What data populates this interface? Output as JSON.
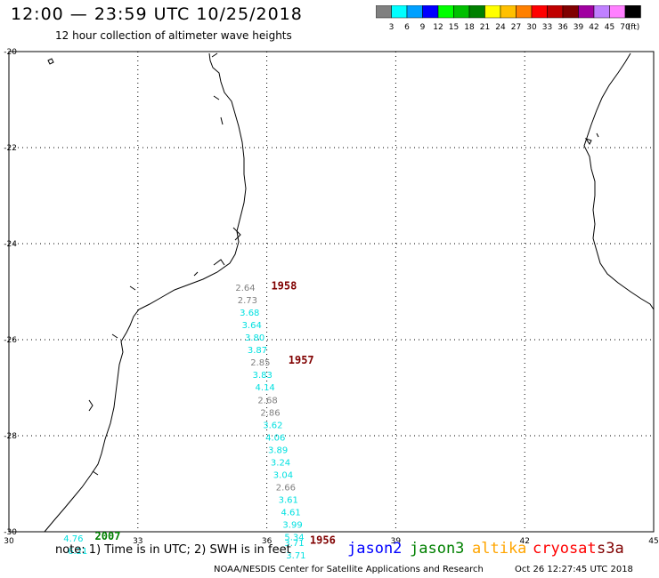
{
  "header": {
    "title": "12:00 — 23:59 UTC 10/25/2018",
    "subtitle": "12 hour collection of altimeter wave heights"
  },
  "colorbar": {
    "unit": "(ft)",
    "colors": [
      "#808080",
      "#00ffff",
      "#00a0ff",
      "#0000ff",
      "#00ff00",
      "#00c000",
      "#008000",
      "#ffff00",
      "#ffc000",
      "#ff8000",
      "#ff0000",
      "#c00000",
      "#800000",
      "#a000a0",
      "#c080ff",
      "#ff80ff",
      "#000000"
    ],
    "labels": [
      "3",
      "6",
      "9",
      "12",
      "15",
      "18",
      "21",
      "24",
      "27",
      "30",
      "33",
      "36",
      "39",
      "42",
      "45",
      "70"
    ]
  },
  "notes": "note: 1) Time is in UTC; 2) SWH is in feet",
  "legend": [
    {
      "name": "jason2",
      "color": "#0000ff"
    },
    {
      "name": "jason3",
      "color": "#008000"
    },
    {
      "name": "altika",
      "color": "#ffa500"
    },
    {
      "name": "cryosat",
      "color": "#ff0000"
    },
    {
      "name": "s3a",
      "color": "#800000"
    }
  ],
  "footer": {
    "agency": "NOAA/NESDIS Center for Satellite Applications and Research",
    "timestamp": "Oct 26 12:27:45 UTC 2018"
  },
  "chart_data": {
    "type": "scatter",
    "title": "12:00 — 23:59 UTC 10/25/2018",
    "subtitle": "12 hour collection of altimeter wave heights",
    "xlim": [
      30,
      45
    ],
    "ylim": [
      -30,
      -20
    ],
    "xticks": [
      30,
      33,
      36,
      39,
      42,
      45
    ],
    "xtick_labels": [
      "30",
      "33",
      "36",
      "39",
      "42",
      "45"
    ],
    "yticks": [
      -20,
      -22,
      -24,
      -26,
      -28,
      -30
    ],
    "ytick_labels": [
      "-20",
      "-22",
      "-24",
      "-26",
      "-28",
      "-30"
    ],
    "grid": true,
    "series": [
      {
        "name": "s3a",
        "color_code": "cyan/gray by SWH",
        "points": [
          {
            "lon": 35.5,
            "lat": -24.98,
            "swh": "2.64",
            "color": "#808080"
          },
          {
            "lon": 35.55,
            "lat": -25.24,
            "swh": "2.73",
            "color": "#808080"
          },
          {
            "lon": 35.6,
            "lat": -25.5,
            "swh": "3.68",
            "color": "#00e0e0"
          },
          {
            "lon": 35.65,
            "lat": -25.76,
            "swh": "3.64",
            "color": "#00e0e0"
          },
          {
            "lon": 35.72,
            "lat": -26.02,
            "swh": "3.80",
            "color": "#00e0e0"
          },
          {
            "lon": 35.78,
            "lat": -26.28,
            "swh": "3.87",
            "color": "#00e0e0"
          },
          {
            "lon": 35.85,
            "lat": -26.54,
            "swh": "2.85",
            "color": "#808080"
          },
          {
            "lon": 35.9,
            "lat": -26.8,
            "swh": "3.83",
            "color": "#00e0e0"
          },
          {
            "lon": 35.96,
            "lat": -27.06,
            "swh": "4.14",
            "color": "#00e0e0"
          },
          {
            "lon": 36.02,
            "lat": -27.32,
            "swh": "2.68",
            "color": "#808080"
          },
          {
            "lon": 36.08,
            "lat": -27.58,
            "swh": "2.86",
            "color": "#808080"
          },
          {
            "lon": 36.14,
            "lat": -27.84,
            "swh": "3.62",
            "color": "#00e0e0"
          },
          {
            "lon": 36.2,
            "lat": -28.1,
            "swh": "4.06",
            "color": "#00e0e0"
          },
          {
            "lon": 36.26,
            "lat": -28.36,
            "swh": "3.89",
            "color": "#00e0e0"
          },
          {
            "lon": 36.32,
            "lat": -28.62,
            "swh": "3.24",
            "color": "#00e0e0"
          },
          {
            "lon": 36.38,
            "lat": -28.88,
            "swh": "3.04",
            "color": "#00e0e0"
          },
          {
            "lon": 36.44,
            "lat": -29.14,
            "swh": "2.66",
            "color": "#808080"
          },
          {
            "lon": 36.5,
            "lat": -29.4,
            "swh": "3.61",
            "color": "#00e0e0"
          },
          {
            "lon": 36.56,
            "lat": -29.66,
            "swh": "4.61",
            "color": "#00e0e0"
          },
          {
            "lon": 36.6,
            "lat": -29.92,
            "swh": "3.99",
            "color": "#00e0e0"
          },
          {
            "lon": 36.64,
            "lat": -30.18,
            "swh": "5.34",
            "color": "#00e0e0"
          },
          {
            "lon": 36.64,
            "lat": -30.3,
            "swh": "3.71",
            "color": "#00e0e0"
          },
          {
            "lon": 36.68,
            "lat": -30.56,
            "swh": "3.71",
            "color": "#00e0e0"
          }
        ],
        "time_labels": [
          {
            "text": "1958",
            "lon": 36.4,
            "lat": -24.95,
            "color": "#800000"
          },
          {
            "text": "1957",
            "lon": 36.8,
            "lat": -26.5,
            "color": "#800000"
          },
          {
            "text": "1956",
            "lon": 37.3,
            "lat": -30.25,
            "color": "#800000"
          }
        ]
      },
      {
        "name": "jason3",
        "points": [
          {
            "lon": 31.5,
            "lat": -30.2,
            "swh": "4.76",
            "color": "#00e0e0"
          },
          {
            "lon": 31.6,
            "lat": -30.46,
            "swh": "6.21",
            "color": "#00e0e0"
          }
        ],
        "time_labels": [
          {
            "text": "2007",
            "lon": 32.3,
            "lat": -30.17,
            "color": "#008000"
          }
        ]
      }
    ]
  }
}
